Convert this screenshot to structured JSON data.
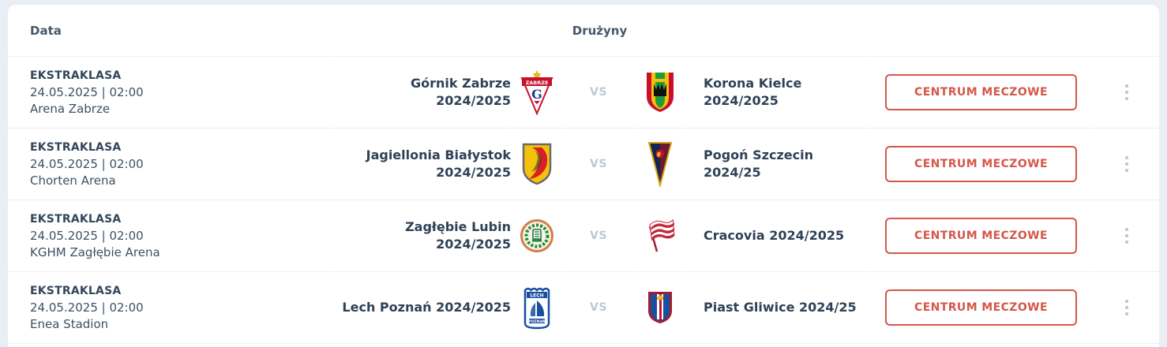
{
  "header": {
    "data_label": "Data",
    "teams_label": "Drużyny"
  },
  "vs_label": "vs",
  "action_label": "CENTRUM MECZOWE",
  "colors": {
    "accent": "#d5574a",
    "text": "#2e4156",
    "muted": "#bcc9d4",
    "divider": "#ededf2",
    "background": "#e8eef4",
    "card": "#ffffff"
  },
  "rows": [
    {
      "league": "EKSTRAKLASA",
      "datetime": "24.05.2025 | 02:00",
      "venue": "Arena Zabrze",
      "home": {
        "name": "Górnik Zabrze 2024/2025",
        "logo": "gornik-zabrze"
      },
      "away": {
        "name": "Korona Kielce 2024/2025",
        "logo": "korona-kielce"
      }
    },
    {
      "league": "EKSTRAKLASA",
      "datetime": "24.05.2025 | 02:00",
      "venue": "Chorten Arena",
      "home": {
        "name": "Jagiellonia Białystok 2024/2025",
        "logo": "jagiellonia-bialystok"
      },
      "away": {
        "name": "Pogoń Szczecin 2024/25",
        "logo": "pogon-szczecin"
      }
    },
    {
      "league": "EKSTRAKLASA",
      "datetime": "24.05.2025 | 02:00",
      "venue": "KGHM Zagłębie Arena",
      "home": {
        "name": "Zagłębie Lubin 2024/2025",
        "logo": "zaglebie-lubin"
      },
      "away": {
        "name": "Cracovia 2024/2025",
        "logo": "cracovia"
      }
    },
    {
      "league": "EKSTRAKLASA",
      "datetime": "24.05.2025 | 02:00",
      "venue": "Enea Stadion",
      "home": {
        "name": "Lech Poznań 2024/2025",
        "logo": "lech-poznan"
      },
      "away": {
        "name": "Piast Gliwice 2024/25",
        "logo": "piast-gliwice"
      }
    }
  ]
}
